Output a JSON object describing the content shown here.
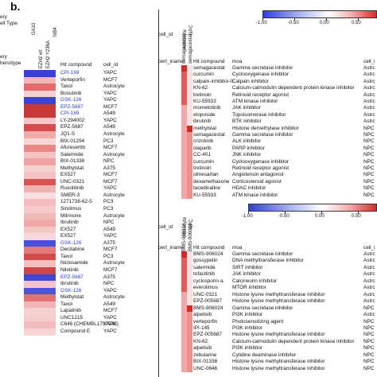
{
  "panel_b_label": "b.",
  "left_panel": {
    "header_top_lines": [
      "ery",
      "ell Type"
    ],
    "header_phenotype": [
      "ery",
      "henotype"
    ],
    "rotated_cols": [
      "GA10",
      "EZH2 wt",
      "EZH2 Y236A",
      "NB4"
    ],
    "col_hit": "Hit compound",
    "col_cell": "cell_id",
    "rows": [
      {
        "compound": "CPI-169",
        "cell": "YAPC",
        "blue": true
      },
      {
        "compound": "Verteporfin",
        "cell": "MCF7",
        "blue": false
      },
      {
        "compound": "Taxol",
        "cell": "Astrocyte",
        "blue": false
      },
      {
        "compound": "Bosutinib",
        "cell": "YAPC",
        "blue": false
      },
      {
        "compound": "GSK-126",
        "cell": "YAPC",
        "blue": true
      },
      {
        "compound": "EPZ-5687",
        "cell": "MCF7",
        "blue": true
      },
      {
        "compound": "CPI-169",
        "cell": "A549",
        "blue": true
      },
      {
        "compound": "LY-294002",
        "cell": "YAPC",
        "blue": false
      },
      {
        "compound": "EPZ-5687",
        "cell": "A549",
        "blue": false
      },
      {
        "compound": "JQ1-S",
        "cell": "Astrocyte",
        "blue": false
      },
      {
        "compound": "BIX-01294",
        "cell": "PC3",
        "blue": false
      },
      {
        "compound": "Afuresertib",
        "cell": "MCF7",
        "blue": false
      },
      {
        "compound": "Salermide",
        "cell": "Astrocyte",
        "blue": false
      },
      {
        "compound": "BIX-01338",
        "cell": "NPC",
        "blue": false
      },
      {
        "compound": "Methylstat",
        "cell": "A375",
        "blue": false
      },
      {
        "compound": "EX527",
        "cell": "MCF7",
        "blue": false
      },
      {
        "compound": "UNC-0321",
        "cell": "MCF7",
        "blue": false
      },
      {
        "compound": "Ruxolitinib",
        "cell": "YAPC",
        "blue": false
      },
      {
        "compound": "SMER-3",
        "cell": "Astrocyte",
        "blue": false
      },
      {
        "compound": "1271738-62-5",
        "cell": "PC3",
        "blue": false
      },
      {
        "compound": "Sirolimus",
        "cell": "PC3",
        "blue": false
      },
      {
        "compound": "Milrinone",
        "cell": "Astrocyte",
        "blue": false
      },
      {
        "compound": "Ibrutinib",
        "cell": "NPC",
        "blue": false
      },
      {
        "compound": "EX527",
        "cell": "A549",
        "blue": false
      },
      {
        "compound": "EX527",
        "cell": "YAPC",
        "blue": false
      },
      {
        "compound": "GSK-126",
        "cell": "A375",
        "blue": true
      },
      {
        "compound": "Decitabine",
        "cell": "MCF7",
        "blue": false
      },
      {
        "compound": "Taxol",
        "cell": "PC3",
        "blue": false
      },
      {
        "compound": "Niclosamide",
        "cell": "Astrocyte",
        "blue": false
      },
      {
        "compound": "Nilotinib",
        "cell": "MCF7",
        "blue": false
      },
      {
        "compound": "EPZ-5687",
        "cell": "A375",
        "blue": true
      },
      {
        "compound": "Ibrutinib",
        "cell": "NPC",
        "blue": false
      },
      {
        "compound": "GSK-126",
        "cell": "YAPC",
        "blue": true
      },
      {
        "compound": "Methylstat",
        "cell": "Astrocyte",
        "blue": false
      },
      {
        "compound": "Taxol",
        "cell": "A549",
        "blue": false
      },
      {
        "compound": "Lapatinib",
        "cell": "MCF7",
        "blue": false
      },
      {
        "compound": "UNC1215",
        "cell": "YAPC",
        "blue": false
      },
      {
        "compound": "C646 (CHEMBL1797936)",
        "cell": "YAPC",
        "blue": false
      },
      {
        "compound": "Compound E",
        "cell": "YAPC",
        "blue": false
      }
    ],
    "heat_colors": [
      "#3a3fd6",
      "#f2b8b8",
      "#e66a6a",
      "#f6d0d0",
      "#3b44d8",
      "#c73a3a",
      "#c93a3a",
      "#f4c6c6",
      "#d64c4c",
      "#f0aaaa",
      "#f7d6d6",
      "#e98888",
      "#f3c2c2",
      "#eea2a2",
      "#f6cfcf",
      "#f4c3c3",
      "#d95656",
      "#f1b2b2",
      "#f8dede",
      "#f3bdbd",
      "#f6caca",
      "#f2b9b9",
      "#efa9a9",
      "#f5c8c8",
      "#f8d9d9",
      "#4451dc",
      "#e57a7a",
      "#d24a4a",
      "#f3bebe",
      "#cf4545",
      "#3a47d9",
      "#f4c5c5",
      "#4a55dd",
      "#e37272",
      "#f1b5b5",
      "#f6d1d1",
      "#f5cdcd",
      "#f2bcbc",
      "#f7d4d4"
    ]
  },
  "colorbar_top": {
    "ticks": [
      "-1.00",
      "-0.50",
      "0.00",
      "0.50"
    ],
    "range": [
      -1.0,
      0.5
    ]
  },
  "colorbar_bottom": {
    "ticks": [
      "-1.00",
      "-0.50",
      "0.00",
      "0.50"
    ],
    "range": [
      -1.0,
      0.5
    ]
  },
  "top_table": {
    "cell_id_label": "cell_id",
    "rot_cols": [
      "semagacestat",
      "semagacestat"
    ],
    "rot_small": [
      "Astrocyte",
      "NPC"
    ],
    "pert_label": "pert_iname",
    "col_hit": "Hit compound",
    "col_moa": "moa",
    "col_cell": "cell_i",
    "rows": [
      {
        "hit": "semagacestat",
        "moa": "Gamma secretase inhibitor",
        "cell": "Astrc"
      },
      {
        "hit": "curcumin",
        "moa": "Cyclooxygenase inhibitor",
        "cell": "Astrc"
      },
      {
        "hit": "calpain-inhibitor-II",
        "moa": "Calpain inhibitor",
        "cell": "Astrc"
      },
      {
        "hit": "KN-62",
        "moa": "Calcium-calmodulin dependent protein kinase inhibitor",
        "cell": "Astrc"
      },
      {
        "hit": "tretinoin",
        "moa": "Retinoid receptor agonist",
        "cell": "Astrc"
      },
      {
        "hit": "KU-55933",
        "moa": "ATM kinase inhibitor",
        "cell": "Astrc"
      },
      {
        "hit": "momelotinib",
        "moa": "JAK inhibitor",
        "cell": "Astrc"
      },
      {
        "hit": "etoposide",
        "moa": "Topoisomerase inhibitor",
        "cell": "Astrc"
      },
      {
        "hit": "ibrutinib",
        "moa": "BTK inhibitor",
        "cell": "Astrc"
      },
      {
        "hit": "methylstat",
        "moa": "Histone demethylase inhibitor",
        "cell": "NPC"
      },
      {
        "hit": "semagacestat",
        "moa": "Gamma secretase inhibitor",
        "cell": "NPC"
      },
      {
        "hit": "crizotinib",
        "moa": "ALK inhibitor",
        "cell": "NPC"
      },
      {
        "hit": "olaparib",
        "moa": "PARP inhibitor",
        "cell": "NPC"
      },
      {
        "hit": "CC-401",
        "moa": "JNK inhibitor",
        "cell": "NPC"
      },
      {
        "hit": "curcumin",
        "moa": "Cyclooxygenase inhibitor",
        "cell": "NPC"
      },
      {
        "hit": "tretinoin",
        "moa": "Retinoid receptor agonist",
        "cell": "NPC"
      },
      {
        "hit": "olmesartan",
        "moa": "Angiotensin antagonist",
        "cell": "NPC"
      },
      {
        "hit": "dexamethasone",
        "moa": "Corticosteroid agonist",
        "cell": "NPC"
      },
      {
        "hit": "tacedinaline",
        "moa": "HDAC inhibitor",
        "cell": "NPC"
      },
      {
        "hit": "KU-55933",
        "moa": "ATM kinase inhibitor",
        "cell": "NPC"
      }
    ]
  },
  "bottom_table": {
    "cell_id_label": "cell_id",
    "rot_cols": [
      "BMS-906024",
      "BMS-906024"
    ],
    "rot_small": [
      "Astrocyte",
      "NPC"
    ],
    "pert_label": "pert_iname",
    "col_hit": "Hit compound",
    "col_moa": "moa",
    "col_cell": "cell_i",
    "rows": [
      {
        "hit": "BMS-906024",
        "moa": "Gamma secretase inhibitor",
        "cell": "Astrc"
      },
      {
        "hit": "gossypetin",
        "moa": "DNA methyltransferase inhibitor",
        "cell": "Astrc"
      },
      {
        "hit": "salermide",
        "moa": "SIRT inhibitor",
        "cell": "Astrc"
      },
      {
        "hit": "tofacitinib",
        "moa": "JAK inhibitor",
        "cell": "Astrc"
      },
      {
        "hit": "cyclosporin-a",
        "moa": "Calcineurin inhibitor",
        "cell": "Astrc"
      },
      {
        "hit": "everolimus",
        "moa": "MTOR inhibitor",
        "cell": "Astrc"
      },
      {
        "hit": "UNC-0321",
        "moa": "Histone lysine methyltransferase inhibitor",
        "cell": "Astrc"
      },
      {
        "hit": "EPZ-005687",
        "moa": "Histone lysine methyltransferase inhibitor",
        "cell": "Astrc"
      },
      {
        "hit": "BMS-906024",
        "moa": "Gamma secretase inhibitor",
        "cell": "NPC"
      },
      {
        "hit": "alpelisib",
        "moa": "PI3K inhibitor",
        "cell": "Astrc"
      },
      {
        "hit": "verteporfin",
        "moa": "Photosensitizing agent",
        "cell": "NPC"
      },
      {
        "hit": "IPI-145",
        "moa": "PI3K inhibitor",
        "cell": "NPC"
      },
      {
        "hit": "EPZ-005687",
        "moa": "Histone lysine methyltransferase inhibitor",
        "cell": "NPC"
      },
      {
        "hit": "KN-62",
        "moa": "Calcium-calmodulin dependent protein kinase inhibitor",
        "cell": "NPC"
      },
      {
        "hit": "alpelisib",
        "moa": "PI3K inhibitor",
        "cell": "NPC"
      },
      {
        "hit": "zebularine",
        "moa": "Cytidine deaminase inhibitor",
        "cell": "NPC"
      },
      {
        "hit": "BIX-01338",
        "moa": "Histone lysine methyltransferase inhibitor",
        "cell": "NPC"
      },
      {
        "hit": "UNC-0646",
        "moa": "Histone lysine methyltransferase inhibitor",
        "cell": "NPC"
      }
    ]
  }
}
